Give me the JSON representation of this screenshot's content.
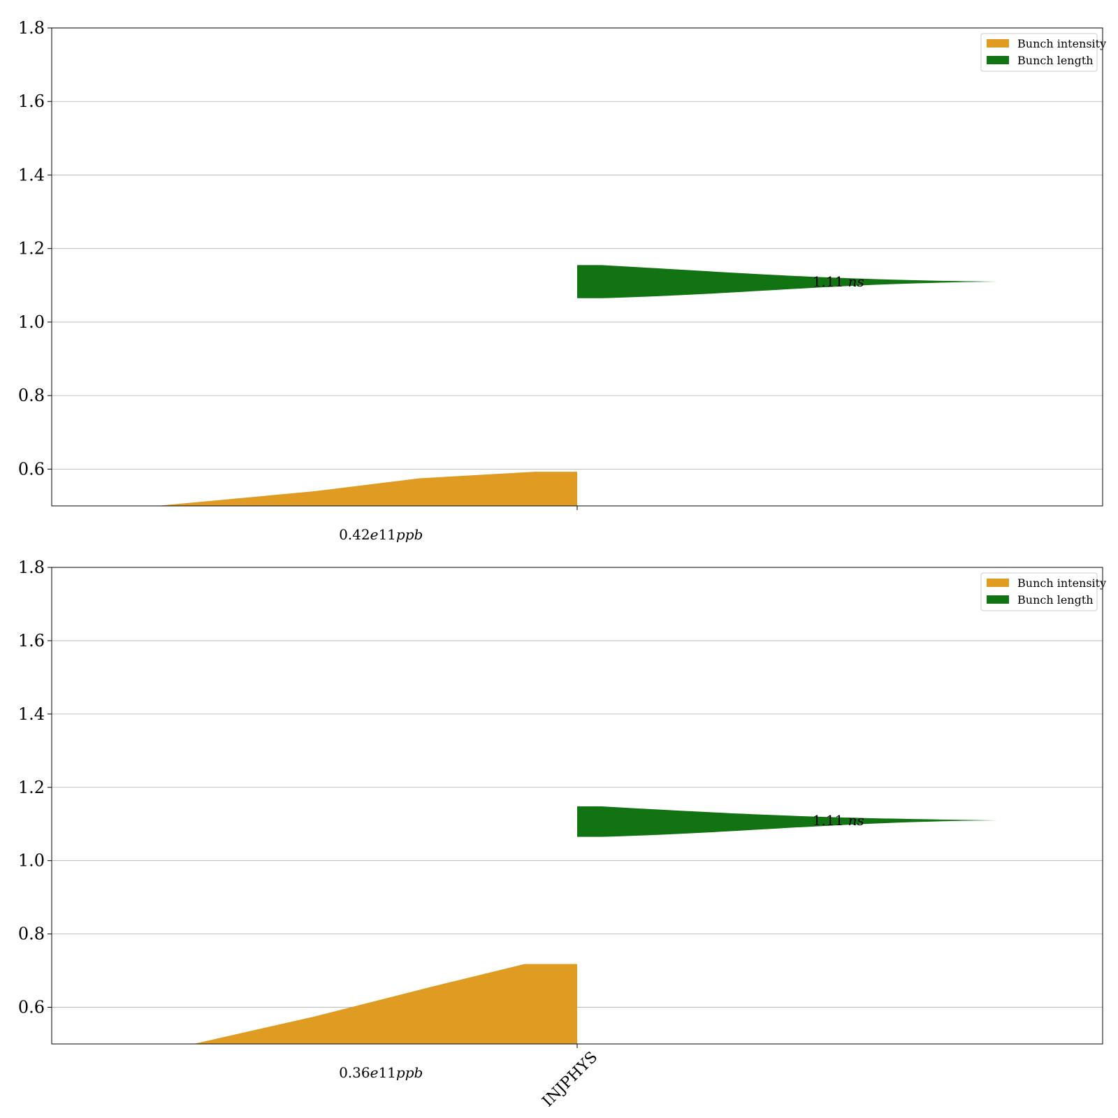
{
  "chart_data": [
    {
      "type": "area",
      "ylim": [
        0.5,
        1.8
      ],
      "yticks": [
        "0.6",
        "0.8",
        "1.0",
        "1.2",
        "1.4",
        "1.6",
        "1.8"
      ],
      "xticks": [
        ""
      ],
      "grid": true,
      "legend_placement": "top-right",
      "series": [
        {
          "name": "Bunch intensity",
          "color": "#e09c22",
          "profile": [
            [
              0.2,
              0.5
            ],
            [
              0.5,
              0.54
            ],
            [
              0.7,
              0.575
            ],
            [
              0.92,
              0.593
            ],
            [
              1.0,
              0.593
            ]
          ]
        },
        {
          "name": "Bunch length",
          "color": "#127312",
          "center": 1.11,
          "upper_edge": 1.155,
          "lower_edge": 1.065
        }
      ],
      "annotations": {
        "intensity": "0.42e11ppb",
        "length": "1.11 ns"
      }
    },
    {
      "type": "area",
      "ylim": [
        0.5,
        1.8
      ],
      "yticks": [
        "0.6",
        "0.8",
        "1.0",
        "1.2",
        "1.4",
        "1.6",
        "1.8"
      ],
      "xticks": [
        "INJPHYS"
      ],
      "grid": true,
      "legend_placement": "top-right",
      "series": [
        {
          "name": "Bunch intensity",
          "color": "#e09c22",
          "profile": [
            [
              0.27,
              0.5
            ],
            [
              0.5,
              0.575
            ],
            [
              0.72,
              0.655
            ],
            [
              0.9,
              0.718
            ],
            [
              1.0,
              0.718
            ]
          ]
        },
        {
          "name": "Bunch length",
          "color": "#127312",
          "center": 1.11,
          "upper_edge": 1.148,
          "lower_edge": 1.065
        }
      ],
      "annotations": {
        "intensity": "0.36e11ppb",
        "length": "1.11 ns"
      }
    }
  ]
}
